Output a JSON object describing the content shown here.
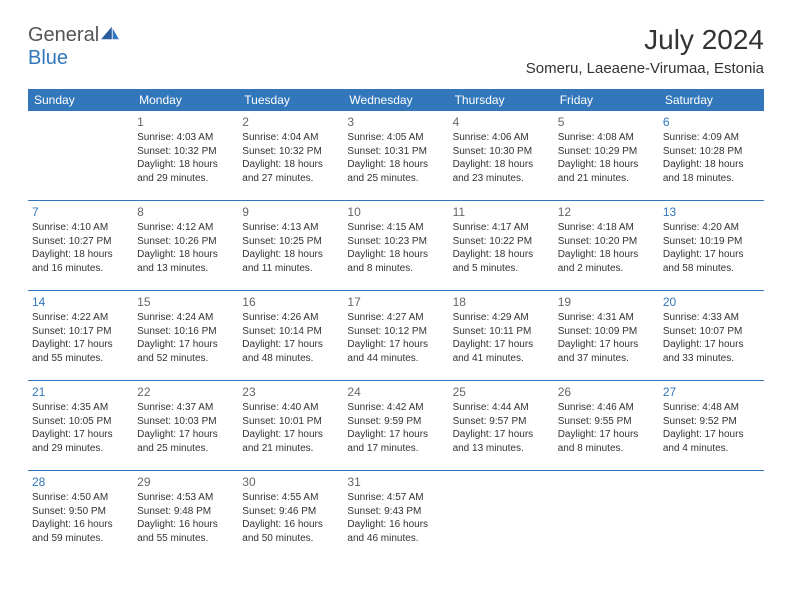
{
  "logo": {
    "text1": "General",
    "text2": "Blue"
  },
  "title": "July 2024",
  "location": "Someru, Laeaene-Virumaa, Estonia",
  "colors": {
    "accent": "#3277bc",
    "text": "#333333",
    "muted": "#666666",
    "bg": "#ffffff"
  },
  "fonts": {
    "family": "Arial",
    "title_size": 28,
    "location_size": 15,
    "dayhdr_size": 12,
    "cell_size": 10
  },
  "dayHeaders": [
    "Sunday",
    "Monday",
    "Tuesday",
    "Wednesday",
    "Thursday",
    "Friday",
    "Saturday"
  ],
  "weeks": [
    [
      {},
      {
        "n": "1",
        "sr": "Sunrise: 4:03 AM",
        "ss": "Sunset: 10:32 PM",
        "dl": "Daylight: 18 hours and 29 minutes."
      },
      {
        "n": "2",
        "sr": "Sunrise: 4:04 AM",
        "ss": "Sunset: 10:32 PM",
        "dl": "Daylight: 18 hours and 27 minutes."
      },
      {
        "n": "3",
        "sr": "Sunrise: 4:05 AM",
        "ss": "Sunset: 10:31 PM",
        "dl": "Daylight: 18 hours and 25 minutes."
      },
      {
        "n": "4",
        "sr": "Sunrise: 4:06 AM",
        "ss": "Sunset: 10:30 PM",
        "dl": "Daylight: 18 hours and 23 minutes."
      },
      {
        "n": "5",
        "sr": "Sunrise: 4:08 AM",
        "ss": "Sunset: 10:29 PM",
        "dl": "Daylight: 18 hours and 21 minutes."
      },
      {
        "n": "6",
        "sr": "Sunrise: 4:09 AM",
        "ss": "Sunset: 10:28 PM",
        "dl": "Daylight: 18 hours and 18 minutes."
      }
    ],
    [
      {
        "n": "7",
        "sr": "Sunrise: 4:10 AM",
        "ss": "Sunset: 10:27 PM",
        "dl": "Daylight: 18 hours and 16 minutes."
      },
      {
        "n": "8",
        "sr": "Sunrise: 4:12 AM",
        "ss": "Sunset: 10:26 PM",
        "dl": "Daylight: 18 hours and 13 minutes."
      },
      {
        "n": "9",
        "sr": "Sunrise: 4:13 AM",
        "ss": "Sunset: 10:25 PM",
        "dl": "Daylight: 18 hours and 11 minutes."
      },
      {
        "n": "10",
        "sr": "Sunrise: 4:15 AM",
        "ss": "Sunset: 10:23 PM",
        "dl": "Daylight: 18 hours and 8 minutes."
      },
      {
        "n": "11",
        "sr": "Sunrise: 4:17 AM",
        "ss": "Sunset: 10:22 PM",
        "dl": "Daylight: 18 hours and 5 minutes."
      },
      {
        "n": "12",
        "sr": "Sunrise: 4:18 AM",
        "ss": "Sunset: 10:20 PM",
        "dl": "Daylight: 18 hours and 2 minutes."
      },
      {
        "n": "13",
        "sr": "Sunrise: 4:20 AM",
        "ss": "Sunset: 10:19 PM",
        "dl": "Daylight: 17 hours and 58 minutes."
      }
    ],
    [
      {
        "n": "14",
        "sr": "Sunrise: 4:22 AM",
        "ss": "Sunset: 10:17 PM",
        "dl": "Daylight: 17 hours and 55 minutes."
      },
      {
        "n": "15",
        "sr": "Sunrise: 4:24 AM",
        "ss": "Sunset: 10:16 PM",
        "dl": "Daylight: 17 hours and 52 minutes."
      },
      {
        "n": "16",
        "sr": "Sunrise: 4:26 AM",
        "ss": "Sunset: 10:14 PM",
        "dl": "Daylight: 17 hours and 48 minutes."
      },
      {
        "n": "17",
        "sr": "Sunrise: 4:27 AM",
        "ss": "Sunset: 10:12 PM",
        "dl": "Daylight: 17 hours and 44 minutes."
      },
      {
        "n": "18",
        "sr": "Sunrise: 4:29 AM",
        "ss": "Sunset: 10:11 PM",
        "dl": "Daylight: 17 hours and 41 minutes."
      },
      {
        "n": "19",
        "sr": "Sunrise: 4:31 AM",
        "ss": "Sunset: 10:09 PM",
        "dl": "Daylight: 17 hours and 37 minutes."
      },
      {
        "n": "20",
        "sr": "Sunrise: 4:33 AM",
        "ss": "Sunset: 10:07 PM",
        "dl": "Daylight: 17 hours and 33 minutes."
      }
    ],
    [
      {
        "n": "21",
        "sr": "Sunrise: 4:35 AM",
        "ss": "Sunset: 10:05 PM",
        "dl": "Daylight: 17 hours and 29 minutes."
      },
      {
        "n": "22",
        "sr": "Sunrise: 4:37 AM",
        "ss": "Sunset: 10:03 PM",
        "dl": "Daylight: 17 hours and 25 minutes."
      },
      {
        "n": "23",
        "sr": "Sunrise: 4:40 AM",
        "ss": "Sunset: 10:01 PM",
        "dl": "Daylight: 17 hours and 21 minutes."
      },
      {
        "n": "24",
        "sr": "Sunrise: 4:42 AM",
        "ss": "Sunset: 9:59 PM",
        "dl": "Daylight: 17 hours and 17 minutes."
      },
      {
        "n": "25",
        "sr": "Sunrise: 4:44 AM",
        "ss": "Sunset: 9:57 PM",
        "dl": "Daylight: 17 hours and 13 minutes."
      },
      {
        "n": "26",
        "sr": "Sunrise: 4:46 AM",
        "ss": "Sunset: 9:55 PM",
        "dl": "Daylight: 17 hours and 8 minutes."
      },
      {
        "n": "27",
        "sr": "Sunrise: 4:48 AM",
        "ss": "Sunset: 9:52 PM",
        "dl": "Daylight: 17 hours and 4 minutes."
      }
    ],
    [
      {
        "n": "28",
        "sr": "Sunrise: 4:50 AM",
        "ss": "Sunset: 9:50 PM",
        "dl": "Daylight: 16 hours and 59 minutes."
      },
      {
        "n": "29",
        "sr": "Sunrise: 4:53 AM",
        "ss": "Sunset: 9:48 PM",
        "dl": "Daylight: 16 hours and 55 minutes."
      },
      {
        "n": "30",
        "sr": "Sunrise: 4:55 AM",
        "ss": "Sunset: 9:46 PM",
        "dl": "Daylight: 16 hours and 50 minutes."
      },
      {
        "n": "31",
        "sr": "Sunrise: 4:57 AM",
        "ss": "Sunset: 9:43 PM",
        "dl": "Daylight: 16 hours and 46 minutes."
      },
      {},
      {},
      {}
    ]
  ]
}
